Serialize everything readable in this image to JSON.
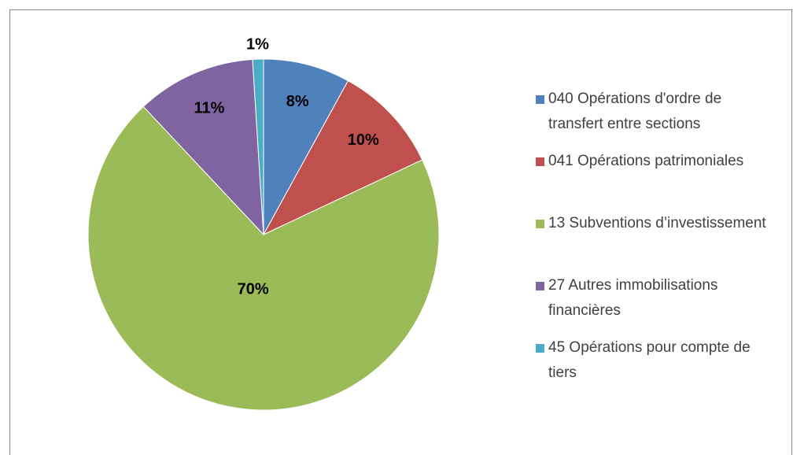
{
  "chart_data": {
    "type": "pie",
    "categories": [
      "040 Opérations d'ordre de transfert entre sections",
      "041 Opérations patrimoniales",
      "13 Subventions d’investissement",
      "27 Autres immobilisations financières",
      "45 Opérations pour compte de tiers"
    ],
    "values": [
      8,
      10,
      70,
      11,
      1
    ],
    "value_labels": [
      "8%",
      "10%",
      "70%",
      "11%",
      "1%"
    ],
    "colors": [
      "#4f81bd",
      "#c0504d",
      "#9bbb59",
      "#8064a2",
      "#4bacc6"
    ],
    "legend": "right"
  }
}
